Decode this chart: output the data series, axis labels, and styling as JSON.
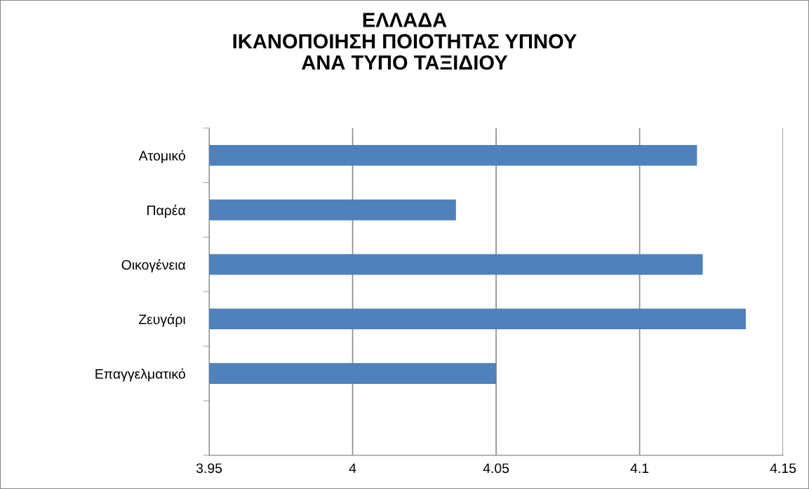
{
  "chart_data": {
    "type": "bar",
    "orientation": "horizontal",
    "title": "ΕΛΛΑΔΑ\nΙΚΑΝΟΠΟΙΗΣΗ ΠΟΙΟΤΗΤΑΣ ΥΠΝΟΥ\nΑΝΑ ΤΥΠΟ ΤΑΞΙΔΙΟΥ",
    "categories": [
      "Ατομικό",
      "Παρέα",
      "Οικογένεια",
      "Ζευγάρι",
      "Επαγγελματικό",
      null
    ],
    "values": [
      4.12,
      4.036,
      4.122,
      4.137,
      4.05,
      null
    ],
    "color": "#4f81bd",
    "xlim": [
      3.95,
      4.15
    ],
    "xticks": [
      3.95,
      4,
      4.05,
      4.1,
      4.15
    ],
    "grid": "x"
  }
}
